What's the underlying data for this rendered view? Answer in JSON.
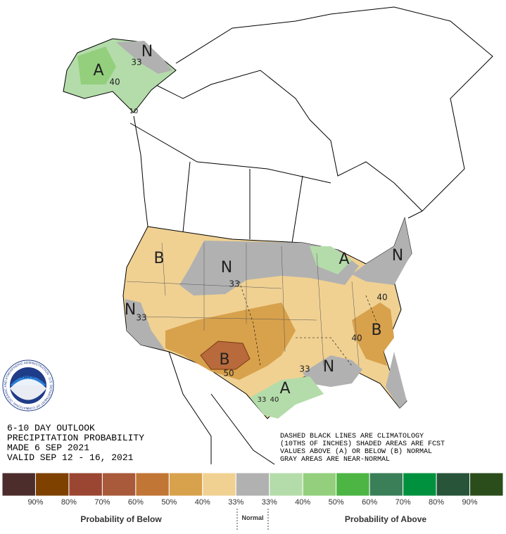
{
  "map_labels": [
    "A",
    "N",
    "33",
    "40",
    "10",
    "B",
    "N",
    "33",
    "N",
    "33",
    "A",
    "N",
    "40",
    "B",
    "40",
    "B",
    "50",
    "33",
    "N",
    "A",
    "33",
    "40"
  ],
  "title_block": [
    "6-10 DAY OUTLOOK",
    "PRECIPITATION PROBABILITY",
    "MADE  6 SEP 2021",
    "VALID  SEP 12 - 16, 2021"
  ],
  "notes": [
    "DASHED BLACK LINES ARE CLIMATOLOGY",
    "(10THS OF INCHES) SHADED AREAS ARE FCST",
    "VALUES ABOVE (A) OR BELOW (B) NORMAL",
    "GRAY AREAS ARE NEAR-NORMAL"
  ],
  "logo": {
    "name": "NOAA",
    "ring_text": "NATIONAL OCEANIC AND ATMOSPHERIC ADMINISTRATION · U.S. DEPARTMENT OF COMMERCE"
  },
  "legend": {
    "colors": [
      "#4d2c2c",
      "#7e4100",
      "#9b4632",
      "#a85a3a",
      "#c27636",
      "#d8a14c",
      "#f0d192",
      "#b1b1b1",
      "#b4dcaa",
      "#93cf7c",
      "#4db544",
      "#3a7f58",
      "#00913f",
      "#285439",
      "#2b4d1c"
    ],
    "labels": [
      "90%",
      "80%",
      "70%",
      "60%",
      "50%",
      "40%",
      "33%",
      "33%",
      "40%",
      "50%",
      "60%",
      "70%",
      "80%",
      "90%"
    ],
    "below_title": "Probability of Below",
    "normal_title": "Normal",
    "above_title": "Probability of Above"
  }
}
